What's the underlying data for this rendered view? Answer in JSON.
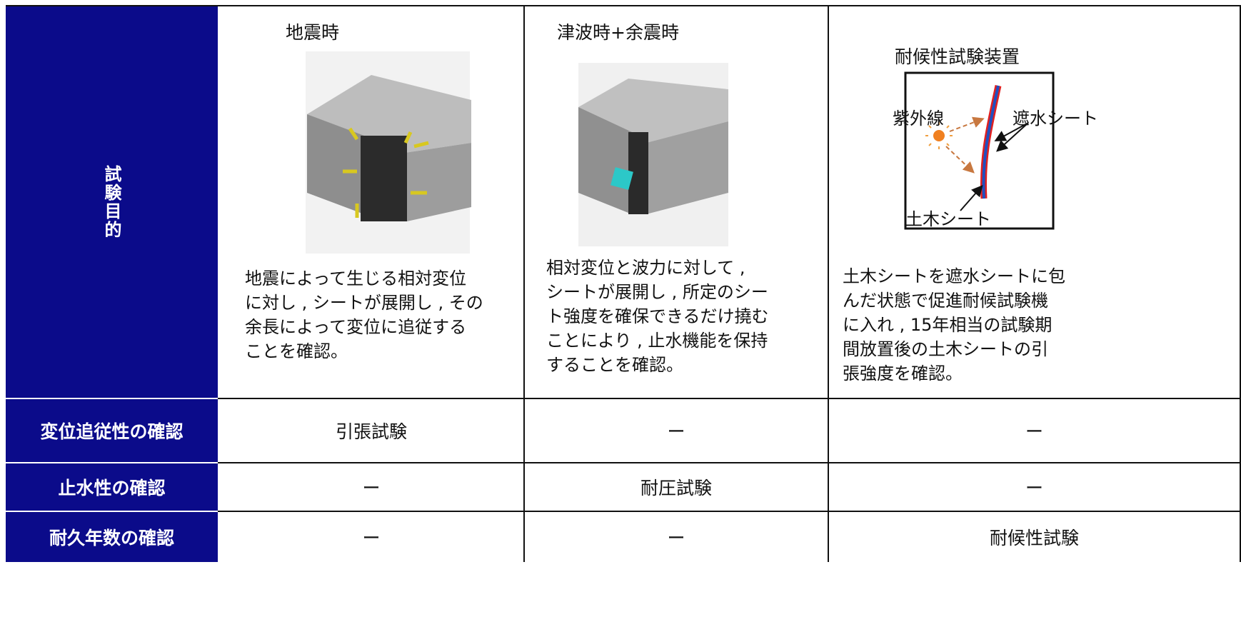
{
  "table": {
    "purpose_label": "試験目的",
    "columns": [
      {
        "title": "地震時",
        "description": [
          "地震によって生じる相対変位",
          "に対し , シートが展開し , その",
          "余長によって変位に追従する",
          "ことを確認。"
        ]
      },
      {
        "title": "津波時+余震時",
        "description": [
          "相対変位と波力に対して ,",
          "シートが展開し , 所定のシー",
          "ト強度を確保できるだけ撓む",
          "ことにより , 止水機能を保持",
          "することを確認。"
        ]
      },
      {
        "title": "耐候性試験装置",
        "description": [
          "土木シートを遮水シートに包",
          "んだ状態で促進耐候試験機",
          "に入れ , 15年相当の試験期",
          "間放置後の土木シートの引",
          "張強度を確認。"
        ]
      }
    ],
    "diagram": {
      "uv": "紫外線",
      "waterproof_sheet": "遮水シート",
      "civil_sheet": "土木シート"
    },
    "rows": [
      [
        "変位追従性の確認",
        "引張試験",
        "ー",
        "ー"
      ],
      [
        "止水性の確認",
        "ー",
        "耐圧試験",
        "ー"
      ],
      [
        "耐久年数の確認",
        "ー",
        "ー",
        "耐候性試験"
      ]
    ]
  }
}
